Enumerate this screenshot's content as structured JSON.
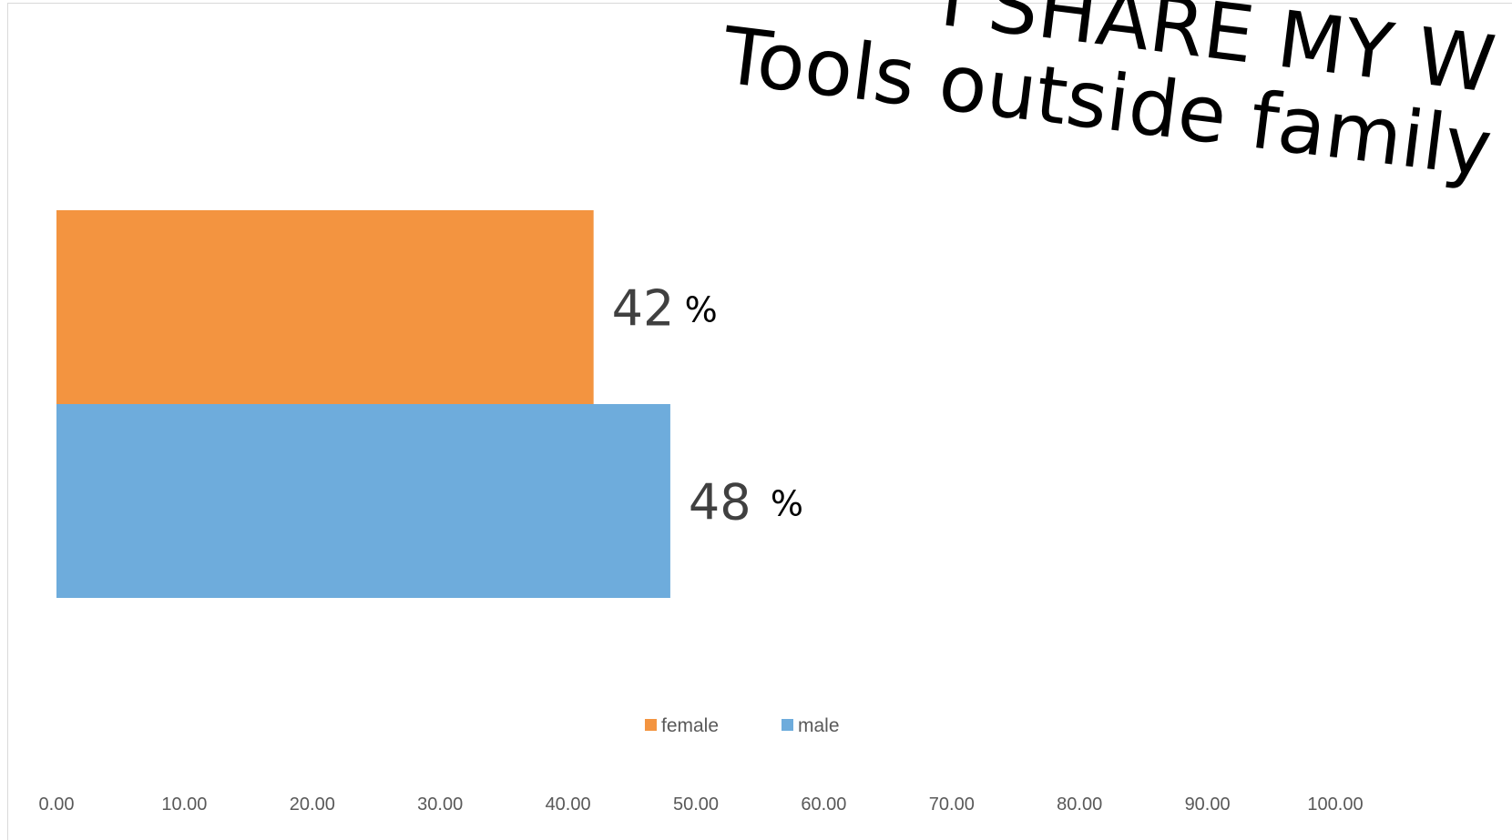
{
  "chart_data": {
    "type": "bar",
    "orientation": "horizontal",
    "title_lines": [
      "I SHARE MY W",
      "Tools outside family"
    ],
    "categories": [
      ""
    ],
    "series": [
      {
        "name": "female",
        "values": [
          42
        ],
        "label": "42",
        "color": "#F39440"
      },
      {
        "name": "male",
        "values": [
          48
        ],
        "label": "48",
        "color": "#6EACDC"
      }
    ],
    "unit_suffix": "%",
    "xlim": [
      0,
      100
    ],
    "x_ticks": [
      "0.00",
      "10.00",
      "20.00",
      "30.00",
      "40.00",
      "50.00",
      "60.00",
      "70.00",
      "80.00",
      "90.00",
      "100.00"
    ],
    "grid": false,
    "legend_position": "bottom"
  }
}
